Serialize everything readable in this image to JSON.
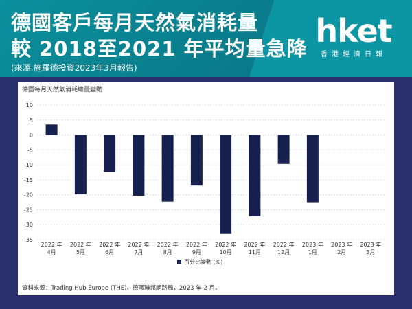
{
  "header": {
    "title_line1": "德國客戶每月天然氣消耗量",
    "title_line2": "較 2018至2021 年平均量急降",
    "source": "(來源:施羅德投資2023年3月報告)",
    "logo": "hket",
    "logo_sub": "香港經濟日報"
  },
  "chart_data": {
    "type": "bar",
    "title": "德國每月天然氣消耗總量變動",
    "categories": [
      [
        "2022 年",
        "4月"
      ],
      [
        "2022 年",
        "5月"
      ],
      [
        "2022 年",
        "6月"
      ],
      [
        "2022 年",
        "7月"
      ],
      [
        "2022 年",
        "8月"
      ],
      [
        "2022 年",
        "9月"
      ],
      [
        "2022 年",
        "10月"
      ],
      [
        "2022 年",
        "11月"
      ],
      [
        "2022 年",
        "12月"
      ],
      [
        "2023 年",
        "1月"
      ],
      [
        "2023 年",
        "2月"
      ],
      [
        "2023 年",
        "3月"
      ]
    ],
    "series": [
      {
        "name": "百分比變動 (%)",
        "values": [
          3.5,
          -19.8,
          -12.3,
          -20.3,
          -22.3,
          -16.9,
          -33.1,
          -27.2,
          -9.7,
          -22.5,
          null,
          null
        ]
      }
    ],
    "yticks": [
      10,
      5,
      0,
      -5,
      -10,
      -15,
      -20,
      -25,
      -30,
      -35
    ],
    "ylim": [
      -35,
      10
    ],
    "bar_color": "#17214f",
    "grid": true,
    "legend": "bottom"
  },
  "footer": {
    "source": "資料來源：Trading Hub Europe (THE)、德國聯邦網路局，2023 年 2 月。"
  }
}
